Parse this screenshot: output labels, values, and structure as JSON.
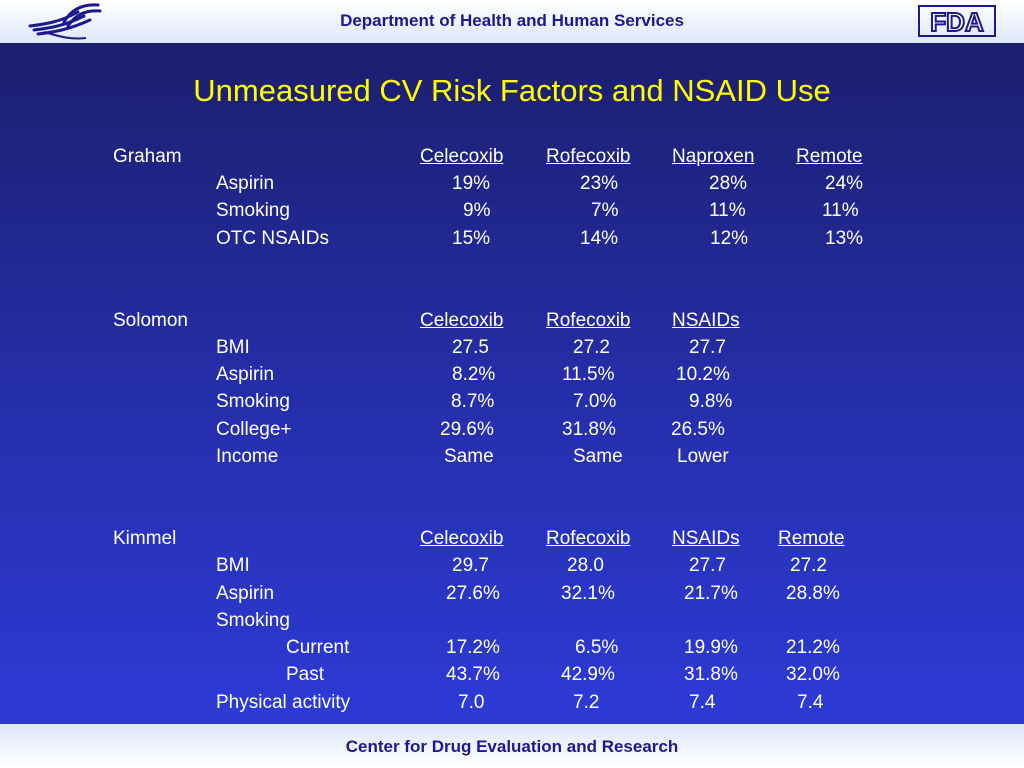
{
  "header": {
    "title": "Department of Health and Human Services"
  },
  "logos": {
    "hhs": "hhs-eagle-logo",
    "fda": "FDA"
  },
  "slide_title": "Unmeasured CV Risk Factors and NSAID Use",
  "footer": {
    "text": "Center for Drug Evaluation and Research"
  },
  "graham": {
    "name": "Graham",
    "columns": [
      "Celecoxib",
      "Rofecoxib",
      "Naproxen",
      "Remote"
    ],
    "rows": [
      {
        "label": "Aspirin",
        "values": [
          "19%",
          "23%",
          "28%",
          "24%"
        ]
      },
      {
        "label": "Smoking",
        "values": [
          "9%",
          "7%",
          "11%",
          "11%"
        ]
      },
      {
        "label": "OTC NSAIDs",
        "values": [
          "15%",
          "14%",
          "12%",
          "13%"
        ]
      }
    ]
  },
  "solomon": {
    "name": "Solomon",
    "columns": [
      "Celecoxib",
      "Rofecoxib",
      "NSAIDs"
    ],
    "rows": [
      {
        "label": "BMI",
        "values": [
          "27.5",
          "27.2",
          "27.7"
        ]
      },
      {
        "label": "Aspirin",
        "values": [
          "8.2%",
          "11.5%",
          "10.2%"
        ]
      },
      {
        "label": "Smoking",
        "values": [
          "8.7%",
          "7.0%",
          "9.8%"
        ]
      },
      {
        "label": "College+",
        "values": [
          "29.6%",
          "31.8%",
          "26.5%"
        ]
      },
      {
        "label": "Income",
        "values": [
          "Same",
          "Same",
          "Lower"
        ]
      }
    ]
  },
  "kimmel": {
    "name": "Kimmel",
    "columns": [
      "Celecoxib",
      "Rofecoxib",
      "NSAIDs",
      "Remote"
    ],
    "rows": [
      {
        "label": "BMI",
        "values": [
          "29.7",
          "28.0",
          "27.7",
          "27.2"
        ]
      },
      {
        "label": "Aspirin",
        "values": [
          "27.6%",
          "32.1%",
          "21.7%",
          "28.8%"
        ]
      },
      {
        "label": "Smoking"
      },
      {
        "label": "Current",
        "values": [
          "17.2%",
          "6.5%",
          "19.9%",
          "21.2%"
        ]
      },
      {
        "label": "Past",
        "values": [
          "43.7%",
          "42.9%",
          "31.8%",
          "32.0%"
        ]
      },
      {
        "label": "Physical activity",
        "values": [
          "7.0",
          "7.2",
          "7.4",
          "7.4"
        ]
      }
    ]
  }
}
